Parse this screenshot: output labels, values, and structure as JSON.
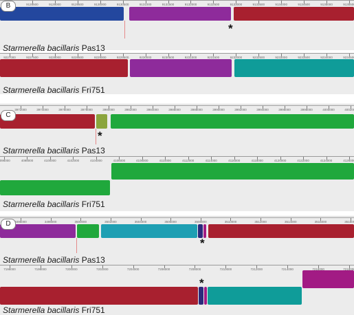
{
  "figure": {
    "background": "#ececec",
    "species": "Starmerella bacillaris",
    "colors": {
      "blue": "#23479e",
      "purple": "#8e2b9b",
      "red": "#a8202f",
      "teal": "#0f9c99",
      "green": "#20a83c",
      "olive": "#8ba53d",
      "cyan": "#1e9fb3",
      "navy": "#2b2a7c",
      "magenta": "#a21b84"
    },
    "panels": [
      {
        "id": "B",
        "rulers": [
          [
            "9128000",
            "9128500",
            "9129000",
            "9129500",
            "9130000",
            "9130500",
            "9131000",
            "9131500",
            "9132000",
            "9132500",
            "9133000",
            "9133500",
            "9134000",
            "9134500",
            "9135000",
            "9135500"
          ],
          [
            "9227000",
            "9227500",
            "9228000",
            "9228500",
            "9229000",
            "9229500",
            "9230000",
            "9230500",
            "9231000",
            "9231500",
            "9232000",
            "9232500",
            "9233000",
            "9233500",
            "9234000",
            "9234500"
          ]
        ],
        "genomes": [
          {
            "species": "Starmerella bacillaris",
            "strain": "Pas13"
          },
          {
            "species": "Starmerella bacillaris",
            "strain": "Fri751"
          }
        ]
      },
      {
        "id": "C",
        "rulers": [
          [
            "3972000",
            "3974000",
            "3976000",
            "3978000",
            "3980000",
            "3982000",
            "3984000",
            "3986000",
            "3988000",
            "3990000",
            "3992000",
            "3994000",
            "3996000",
            "3998000",
            "4000000",
            "4002000"
          ],
          [
            "4096000",
            "4098000",
            "4100000",
            "4102000",
            "4104000",
            "4106000",
            "4108000",
            "4110000",
            "4112000",
            "4114000",
            "4116000",
            "4118000",
            "4120000",
            "4122000",
            "4124000",
            "4126000"
          ]
        ],
        "genomes": [
          {
            "species": "Starmerella bacillaris",
            "strain": "Pas13"
          },
          {
            "species": "Starmerella bacillaris",
            "strain": "Fri751"
          }
        ]
      },
      {
        "id": "D",
        "rulers": [
          [
            "3496000",
            "3498000",
            "3500000",
            "3502000",
            "3504000",
            "3506000",
            "3508000",
            "3510000",
            "3512000",
            "3514000",
            "3516000",
            "3518000"
          ],
          [
            "7196000",
            "7198000",
            "7200000",
            "7202000",
            "7204000",
            "7206000",
            "7208000",
            "7210000",
            "7212000",
            "7214000",
            "7216000",
            "7218000"
          ]
        ],
        "genomes": [
          {
            "species": "Starmerella bacillaris",
            "strain": "Pas13"
          },
          {
            "species": "Starmerella bacillaris",
            "strain": "Fri751"
          }
        ]
      }
    ],
    "asterisk": "*"
  }
}
